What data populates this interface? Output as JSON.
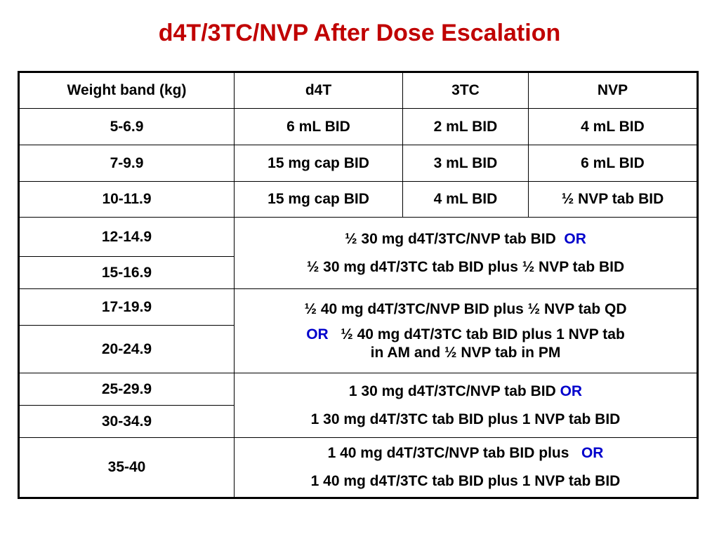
{
  "title": "d4T/3TC/NVP After Dose Escalation",
  "colors": {
    "title": "#c00000",
    "or": "#0000cc",
    "text": "#000000"
  },
  "table": {
    "headers": [
      "Weight band (kg)",
      "d4T",
      "3TC",
      "NVP"
    ],
    "rows": [
      {
        "band": "5-6.9",
        "d4t": "6 mL BID",
        "3tc": "2 mL BID",
        "nvp": "4 mL BID"
      },
      {
        "band": "7-9.9",
        "d4t": "15 mg cap BID",
        "3tc": "3 mL BID",
        "nvp": "6 mL BID"
      },
      {
        "band": "10-11.9",
        "d4t": "15 mg cap BID",
        "3tc": "4 mL BID",
        "nvp": "½ NVP tab BID"
      }
    ],
    "merged": [
      {
        "bands": [
          "12-14.9",
          "15-16.9"
        ],
        "line1": "½ 30 mg d4T/3TC/NVP tab BID",
        "or1": "OR",
        "line2": "½ 30 mg d4T/3TC tab BID plus ½ NVP tab BID"
      },
      {
        "bands": [
          "17-19.9",
          "20-24.9"
        ],
        "line1": "½ 40 mg d4T/3TC/NVP BID plus ½ NVP tab QD",
        "or2": "OR",
        "line2": "½ 40 mg d4T/3TC tab BID plus 1 NVP tab",
        "line3": "in AM and ½ NVP tab in PM"
      },
      {
        "bands": [
          "25-29.9",
          "30-34.9"
        ],
        "line1": "1 30 mg d4T/3TC/NVP tab BID",
        "or1": "OR",
        "line2": "1 30 mg d4T/3TC tab BID plus 1 NVP tab BID"
      },
      {
        "bands": [
          "35-40"
        ],
        "line1": "1 40 mg d4T/3TC/NVP tab BID plus",
        "or1": "OR",
        "line2": "1 40 mg d4T/3TC tab BID plus 1 NVP tab  BID"
      }
    ]
  }
}
